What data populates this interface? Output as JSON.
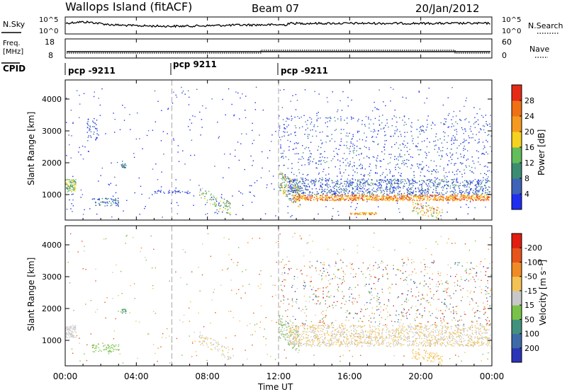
{
  "header": {
    "station": "Wallops Island (fitACF)",
    "beam": "Beam 07",
    "date": "20/Jan/2012"
  },
  "status_panel": {
    "nsky_label": "N.Sky",
    "nsky_ticks": [
      "10^5",
      "10^0"
    ],
    "nsearch_label": "N.Search",
    "nsearch_ticks": [
      "10^5",
      "10^0"
    ],
    "freq_label_line1": "Freq.",
    "freq_label_line2": "[MHz]",
    "freq_ticks": [
      "18",
      "8"
    ],
    "nave_label": "Nave",
    "nave_ticks": [
      "60",
      "0"
    ],
    "cpid_label": "CPID",
    "cpid_segments": [
      {
        "start_hour": 0,
        "label": "pcp -9211"
      },
      {
        "start_hour": 6,
        "label": "pcp 9211"
      },
      {
        "start_hour": 12,
        "label": "pcp -9211"
      }
    ]
  },
  "chart_data": [
    {
      "type": "heatmap",
      "name": "power",
      "ylabel": "Slant Range [km]",
      "yticks": [
        1000,
        2000,
        3000,
        4000
      ],
      "ylim": [
        200,
        4600
      ],
      "xlim_hours": [
        0,
        24
      ],
      "colorbar": {
        "label": "Power [dB]",
        "ticks": [
          "4",
          "8",
          "12",
          "16",
          "20",
          "24",
          "28"
        ],
        "colors": [
          "#1f2ef0",
          "#3f63b8",
          "#3c8c72",
          "#62bd5a",
          "#f5d21f",
          "#f59a1f",
          "#f07014",
          "#e52b16"
        ]
      }
    },
    {
      "type": "heatmap",
      "name": "velocity",
      "ylabel": "Slant Range [km]",
      "yticks": [
        1000,
        2000,
        3000,
        4000
      ],
      "ylim": [
        200,
        4600
      ],
      "xlim_hours": [
        0,
        24
      ],
      "xlabel": "Time UT",
      "xticks": [
        "00:00",
        "04:00",
        "08:00",
        "12:00",
        "16:00",
        "20:00",
        "00:00"
      ],
      "colorbar": {
        "label": "Velocity [m s⁻¹]",
        "ticks": [
          "200",
          "100",
          "50",
          "15",
          "-15",
          "-50",
          "-100",
          "-200"
        ],
        "colors": [
          "#2a35b8",
          "#3e6aa8",
          "#42917e",
          "#79c24a",
          "#c8c8c8",
          "#f3c254",
          "#f08a24",
          "#e6531b",
          "#e01d10"
        ]
      }
    }
  ]
}
